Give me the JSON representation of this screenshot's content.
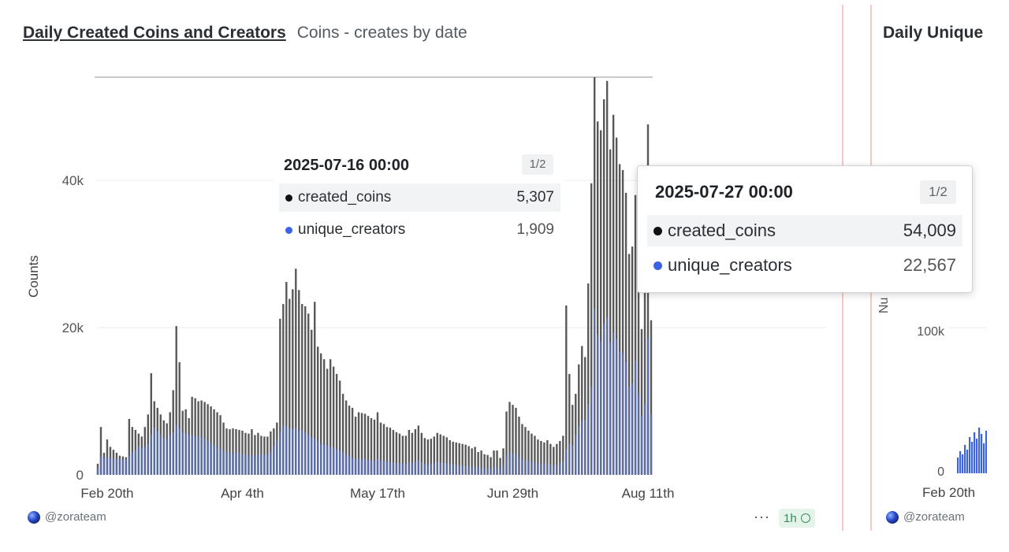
{
  "main_panel": {
    "title": "Daily Created Coins and Creators",
    "subtitle": "Coins - creates by date",
    "footer_user": "@zorateam",
    "more_label": "···",
    "refresh_label": "1h"
  },
  "side_panel": {
    "title": "Daily Unique",
    "ylabel_fragment": "Nu",
    "ytick_label": "100k",
    "zero_label": "0",
    "xtick_label": "Feb 20th",
    "footer_user": "@zorateam",
    "accent": "#3b63e6"
  },
  "tooltip_a": {
    "date": "2025-07-16 00:00",
    "page": "1/2",
    "rows": [
      {
        "label": "created_coins",
        "value": "5,307",
        "color": "#111111"
      },
      {
        "label": "unique_creators",
        "value": "1,909",
        "color": "#3b63e6"
      }
    ]
  },
  "tooltip_b": {
    "date": "2025-07-27 00:00",
    "page": "1/2",
    "rows": [
      {
        "label": "created_coins",
        "value": "54,009",
        "color": "#111111"
      },
      {
        "label": "unique_creators",
        "value": "22,567",
        "color": "#3b63e6"
      }
    ]
  },
  "chart_data": {
    "type": "bar",
    "ylabel": "Counts",
    "ylim": [
      0,
      54009
    ],
    "yticks": [
      {
        "value": 0,
        "label": "0"
      },
      {
        "value": 20000,
        "label": "20k"
      },
      {
        "value": 40000,
        "label": "40k"
      }
    ],
    "x_tick_labels": [
      {
        "index": 3,
        "label": "Feb 20th"
      },
      {
        "index": 46,
        "label": "Apr 4th"
      },
      {
        "index": 89,
        "label": "May 17th"
      },
      {
        "index": 132,
        "label": "Jun 29th"
      },
      {
        "index": 175,
        "label": "Aug 11th"
      }
    ],
    "grid": true,
    "legend": "none",
    "series": [
      {
        "name": "created_coins",
        "color": "#4a4a4a",
        "values": [
          1500,
          6500,
          3000,
          4800,
          3800,
          3400,
          3000,
          2600,
          2500,
          2400,
          7600,
          6500,
          6100,
          5600,
          5200,
          6500,
          8200,
          13800,
          10000,
          9100,
          8200,
          7400,
          7000,
          8500,
          11500,
          20200,
          15300,
          8700,
          8900,
          7700,
          10600,
          10400,
          10000,
          10100,
          9900,
          9600,
          9300,
          8900,
          8500,
          8100,
          7100,
          6300,
          6200,
          6300,
          6200,
          6100,
          6000,
          5700,
          5600,
          6200,
          5400,
          5700,
          5300,
          5200,
          5200,
          5900,
          6300,
          7100,
          21200,
          23200,
          26200,
          23900,
          25200,
          28000,
          25100,
          23200,
          22900,
          21900,
          19700,
          23500,
          17400,
          16500,
          15700,
          14400,
          15700,
          14700,
          13700,
          12800,
          11000,
          10100,
          9400,
          9100,
          7900,
          8500,
          8400,
          8300,
          8000,
          7700,
          7500,
          8500,
          7100,
          6900,
          6500,
          6400,
          6100,
          5800,
          5600,
          5300,
          5300,
          6100,
          5700,
          6200,
          6700,
          5700,
          5000,
          4800,
          4900,
          5200,
          5700,
          5500,
          5300,
          5100,
          4700,
          4500,
          4400,
          4300,
          4200,
          4100,
          3900,
          3600,
          3800,
          3100,
          3300,
          2800,
          2700,
          2400,
          3300,
          3300,
          2300,
          3600,
          8600,
          9900,
          9500,
          9100,
          7900,
          6900,
          6500,
          6000,
          5600,
          5300,
          4800,
          4600,
          4400,
          4700,
          4200,
          3800,
          4200,
          4600,
          5307,
          23000,
          13700,
          9500,
          11000,
          15000,
          17500,
          16000,
          26000,
          39600,
          54009,
          48000,
          46800,
          51000,
          53500,
          44200,
          48900,
          45800,
          42200,
          41400,
          38300,
          30000,
          31000,
          38000,
          30000,
          19800,
          25000,
          47600,
          21000
        ]
      },
      {
        "name": "unique_creators",
        "color": "#5b6fb3",
        "values": [
          900,
          2500,
          2300,
          2400,
          2300,
          2200,
          2100,
          2100,
          2000,
          2100,
          2600,
          3100,
          3400,
          3900,
          3600,
          3800,
          4200,
          5500,
          6400,
          5900,
          5500,
          5000,
          4800,
          5400,
          5800,
          6800,
          6300,
          5800,
          5700,
          5400,
          5400,
          5300,
          5300,
          5100,
          4900,
          4600,
          4400,
          4100,
          3800,
          3600,
          3300,
          3200,
          3000,
          2900,
          3100,
          3000,
          2800,
          2800,
          2600,
          2700,
          2600,
          2700,
          2800,
          2800,
          2700,
          3100,
          3900,
          4700,
          5800,
          6600,
          6700,
          6300,
          6200,
          6400,
          6000,
          6100,
          5800,
          5400,
          5100,
          5000,
          4600,
          4200,
          4100,
          4000,
          3800,
          3700,
          3500,
          3300,
          3100,
          2700,
          2500,
          2300,
          2100,
          2200,
          2100,
          2200,
          2000,
          1900,
          1900,
          2200,
          2000,
          1900,
          1800,
          1700,
          1700,
          1600,
          1600,
          1500,
          1500,
          1700,
          1600,
          1800,
          2000,
          1700,
          1500,
          1400,
          1500,
          1600,
          1800,
          1700,
          1600,
          1600,
          1500,
          1400,
          1400,
          1300,
          1300,
          1200,
          1200,
          1100,
          1200,
          1000,
          1100,
          900,
          900,
          800,
          1100,
          1100,
          800,
          1300,
          2500,
          3000,
          2900,
          2800,
          2500,
          2100,
          2000,
          1900,
          1800,
          1700,
          1600,
          1500,
          1500,
          1600,
          1400,
          1300,
          1400,
          1600,
          1909,
          3500,
          4200,
          4000,
          5400,
          6600,
          7300,
          7500,
          9600,
          12000,
          22567,
          19000,
          18200,
          20500,
          21400,
          18000,
          19300,
          18500,
          16800,
          16500,
          15300,
          12000,
          12500,
          15500,
          11000,
          8000,
          9700,
          18600,
          8200
        ]
      }
    ]
  }
}
